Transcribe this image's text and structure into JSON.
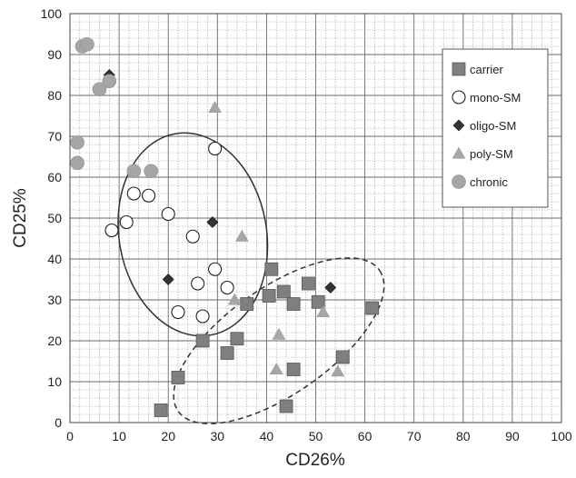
{
  "chart_data": {
    "type": "scatter",
    "title": "",
    "xlabel": "CD26%",
    "ylabel": "CD25%",
    "xlim": [
      0,
      100
    ],
    "ylim": [
      0,
      100
    ],
    "xticks": [
      "0",
      "10",
      "20",
      "30",
      "40",
      "50",
      "60",
      "70",
      "80",
      "90",
      "100"
    ],
    "yticks": [
      "0",
      "10",
      "20",
      "30",
      "40",
      "50",
      "60",
      "70",
      "80",
      "90",
      "100"
    ],
    "grid": true,
    "legend_position": "top-right",
    "series": [
      {
        "name": "carrier",
        "marker": "square",
        "color": "#7f7f7f",
        "points": [
          [
            18.5,
            3
          ],
          [
            22,
            11
          ],
          [
            27,
            20
          ],
          [
            32,
            17
          ],
          [
            34,
            20.5
          ],
          [
            36,
            29
          ],
          [
            41,
            37.5
          ],
          [
            40.5,
            31
          ],
          [
            43.5,
            32
          ],
          [
            45.5,
            29
          ],
          [
            48.5,
            34
          ],
          [
            50.5,
            29.5
          ],
          [
            44,
            4
          ],
          [
            45.5,
            13
          ],
          [
            55.5,
            16
          ],
          [
            61.5,
            28
          ]
        ]
      },
      {
        "name": "mono-SM",
        "marker": "circle-open",
        "color": "#222222",
        "points": [
          [
            8.5,
            47
          ],
          [
            11.5,
            49
          ],
          [
            13,
            56
          ],
          [
            16,
            55.5
          ],
          [
            20,
            51
          ],
          [
            22,
            27
          ],
          [
            25,
            45.5
          ],
          [
            26,
            34
          ],
          [
            27,
            26
          ],
          [
            29.5,
            37.5
          ],
          [
            29.5,
            67
          ],
          [
            32,
            33
          ]
        ]
      },
      {
        "name": "oligo-SM",
        "marker": "diamond",
        "color": "#333333",
        "points": [
          [
            8,
            85
          ],
          [
            20,
            35
          ],
          [
            29,
            49
          ],
          [
            53,
            33
          ]
        ]
      },
      {
        "name": "poly-SM",
        "marker": "triangle",
        "color": "#a6a6a6",
        "points": [
          [
            29.5,
            77
          ],
          [
            35,
            45.5
          ],
          [
            33.5,
            30
          ],
          [
            42.5,
            21.5
          ],
          [
            42,
            13
          ],
          [
            51.5,
            27
          ],
          [
            54.5,
            12.5
          ]
        ]
      },
      {
        "name": "chronic",
        "marker": "circle-filled",
        "color": "#a6a6a6",
        "points": [
          [
            2.5,
            92
          ],
          [
            3.5,
            92.5
          ],
          [
            6,
            81.5
          ],
          [
            8,
            83.5
          ],
          [
            1.5,
            68.5
          ],
          [
            1.5,
            63.5
          ],
          [
            13,
            61.5
          ],
          [
            16.5,
            61.5
          ]
        ]
      }
    ],
    "annotations": [
      {
        "shape": "ellipse",
        "style": "solid",
        "color": "#333333",
        "cx": 25,
        "cy": 46,
        "rx": 15,
        "ry": 25,
        "rotation_deg": 10
      },
      {
        "shape": "ellipse",
        "style": "dashed",
        "color": "#333333",
        "cx": 42.5,
        "cy": 20,
        "rx": 25,
        "ry": 13,
        "rotation_deg": 35
      }
    ]
  }
}
